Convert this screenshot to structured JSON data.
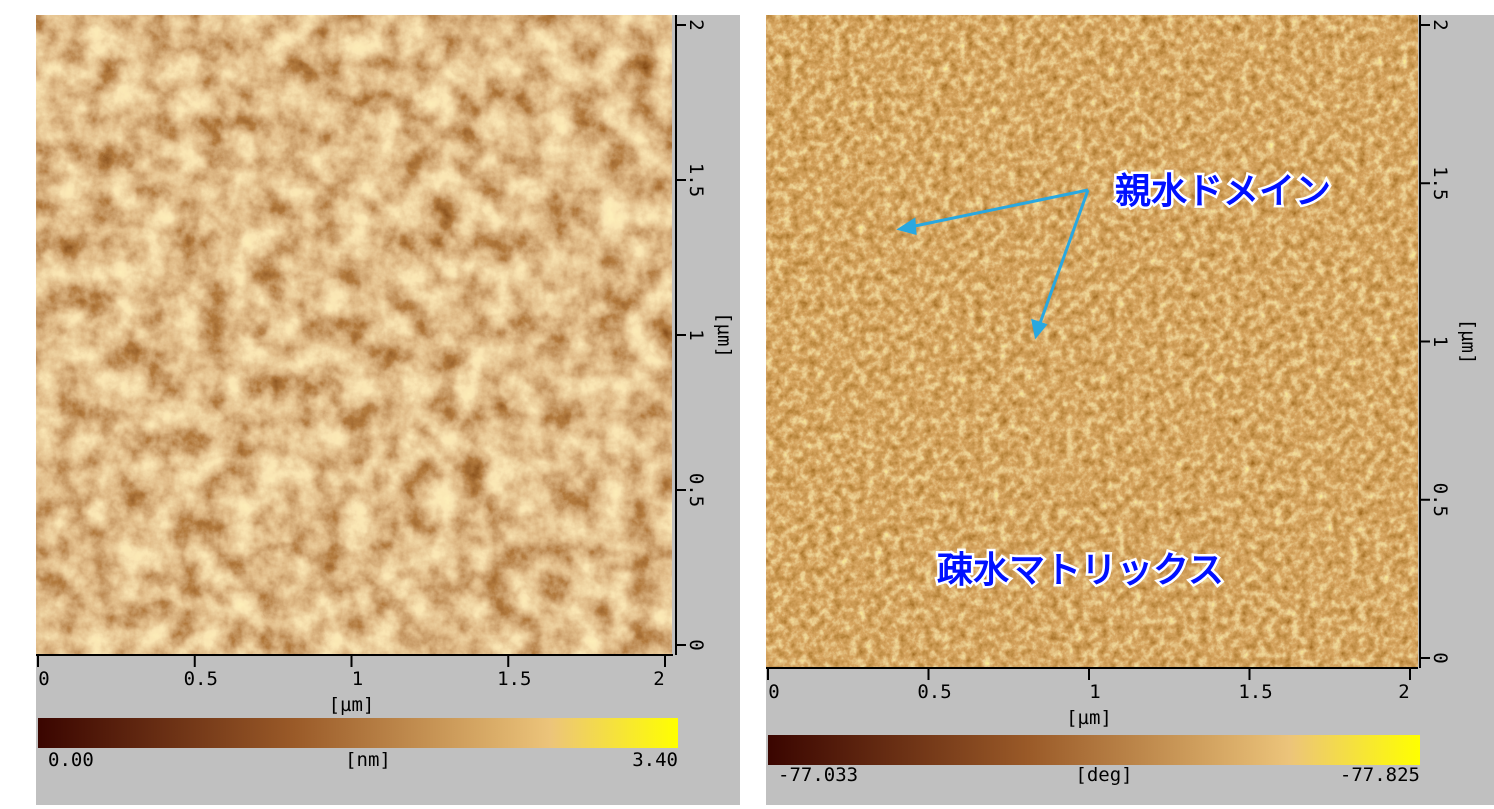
{
  "panels": [
    {
      "x_ticks": [
        "0",
        "0.5",
        "1",
        "1.5",
        "2"
      ],
      "y_ticks": [
        "0",
        "0.5",
        "1",
        "1.5",
        "2"
      ],
      "x_label": "[µm]",
      "y_label": "[µm]",
      "colorbar": {
        "min_label": "0.00",
        "unit": "[nm]",
        "max_label": "3.40"
      }
    },
    {
      "x_ticks": [
        "0",
        "0.5",
        "1",
        "1.5",
        "2"
      ],
      "y_ticks": [
        "0",
        "0.5",
        "1",
        "1.5",
        "2"
      ],
      "x_label": "[µm]",
      "y_label": "[µm]",
      "colorbar": {
        "min_label": "-77.033",
        "unit": "[deg]",
        "max_label": "-77.825"
      },
      "annotations": [
        "親水ドメイン",
        "疎水マトリックス"
      ]
    }
  ]
}
